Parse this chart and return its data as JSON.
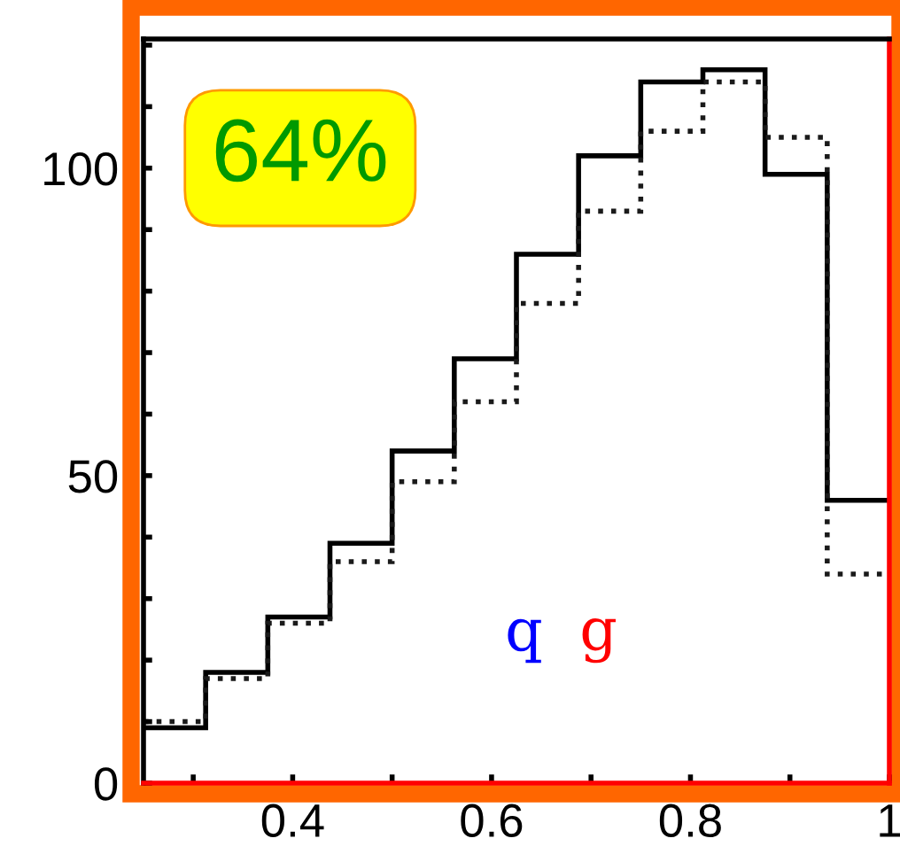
{
  "chart_data": {
    "type": "histogram",
    "bins": [
      0.25,
      0.3125,
      0.375,
      0.4375,
      0.5,
      0.5625,
      0.625,
      0.6875,
      0.75,
      0.8125,
      0.875,
      0.9375,
      1.0
    ],
    "series": [
      {
        "color": "#000000",
        "line_style": "solid",
        "values": [
          9,
          18,
          27,
          39,
          54,
          69,
          86,
          102,
          114,
          116,
          99,
          46
        ]
      },
      {
        "color": "#1a1a1a",
        "line_style": "dotted",
        "values": [
          10,
          17,
          26,
          36,
          49,
          62,
          78,
          93,
          106,
          114,
          105,
          34
        ]
      }
    ],
    "xlim": [
      0.25,
      1.0
    ],
    "xticks": [
      {
        "value": 0.3,
        "label": null
      },
      0.4,
      {
        "value": 0.5,
        "label": null
      },
      0.6,
      {
        "value": 0.7,
        "label": null
      },
      0.8,
      {
        "value": 0.9,
        "label": null
      },
      {
        "value": 1.0,
        "label": "1"
      }
    ],
    "ylim": [
      0,
      121
    ],
    "yticks": [
      0,
      {
        "value": 10,
        "label": null
      },
      {
        "value": 20,
        "label": null
      },
      {
        "value": 30,
        "label": null
      },
      {
        "value": 40,
        "label": null
      },
      50,
      {
        "value": 60,
        "label": null
      },
      {
        "value": 70,
        "label": null
      },
      {
        "value": 80,
        "label": null
      },
      {
        "value": 90,
        "label": null
      },
      100,
      {
        "value": 110,
        "label": null
      },
      {
        "value": 120,
        "label": null
      }
    ],
    "grid": false,
    "legend": false,
    "annotations": [
      "64%",
      "q",
      "g"
    ]
  }
}
